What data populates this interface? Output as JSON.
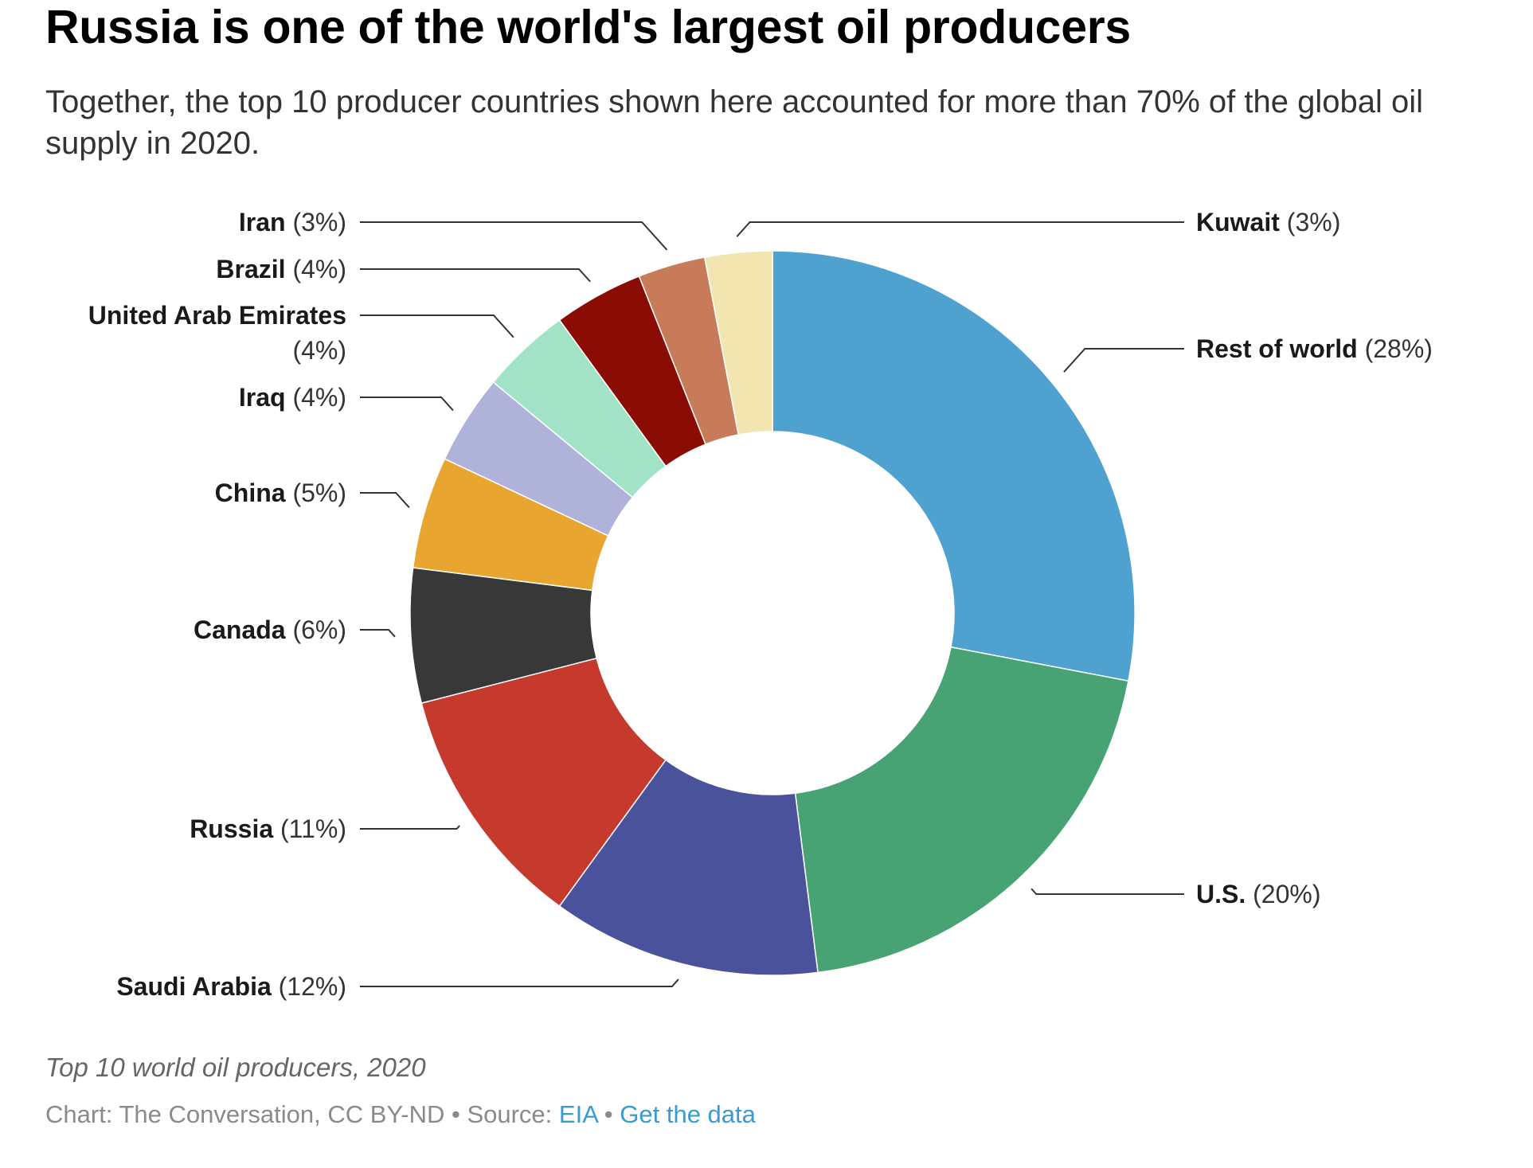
{
  "header": {
    "title": "Russia is one of the world's largest oil producers",
    "subtitle": "Together, the top 10 producer countries shown here accounted for more than 70% of the global oil supply in 2020."
  },
  "chart_data": {
    "type": "pie",
    "donut": true,
    "categories": [
      "Rest of world",
      "U.S.",
      "Saudi Arabia",
      "Russia",
      "Canada",
      "China",
      "Iraq",
      "United Arab Emirates",
      "Brazil",
      "Iran",
      "Kuwait"
    ],
    "values": [
      28,
      20,
      12,
      11,
      6,
      5,
      4,
      4,
      4,
      3,
      3
    ],
    "labels": [
      {
        "name": "Rest of world",
        "pct": "(28%)"
      },
      {
        "name": "U.S.",
        "pct": "(20%)"
      },
      {
        "name": "Saudi Arabia",
        "pct": "(12%)"
      },
      {
        "name": "Russia",
        "pct": "(11%)"
      },
      {
        "name": "Canada",
        "pct": "(6%)"
      },
      {
        "name": "China",
        "pct": "(5%)"
      },
      {
        "name": "Iraq",
        "pct": "(4%)"
      },
      {
        "name": "United Arab Emirates",
        "pct": "(4%)"
      },
      {
        "name": "Brazil",
        "pct": "(4%)"
      },
      {
        "name": "Iran",
        "pct": "(3%)"
      },
      {
        "name": "Kuwait",
        "pct": "(3%)"
      }
    ],
    "colors": [
      "#4fa1cf",
      "#47a374",
      "#4b529c",
      "#c6392d",
      "#383838",
      "#e8a630",
      "#b0b3d9",
      "#a2e3c8",
      "#8b0c05",
      "#c87b58",
      "#f3e5b0"
    ]
  },
  "footer": {
    "caption": "Top 10 world oil producers, 2020",
    "credit_prefix": "Chart: The Conversation, CC BY-ND • Source: ",
    "source_link": "EIA",
    "separator": " • ",
    "data_link": "Get the data"
  }
}
